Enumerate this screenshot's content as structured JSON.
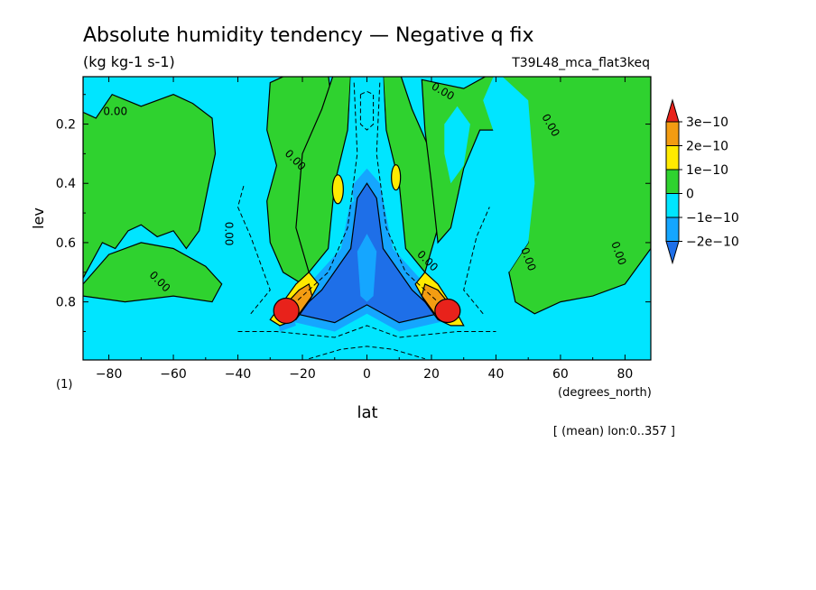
{
  "chart_data": {
    "type": "heatmap",
    "title": "Absolute humidity tendency — Negative q fix",
    "subtitle": "(kg kg-1 s-1)",
    "run_label": "T39L48_mca_flat3keq",
    "xlabel": "lat",
    "xunit": "(degrees_north)",
    "ylabel": "lev",
    "yunit": "(1)",
    "footnote": "[ (mean) lon:0..357 ]",
    "x_ticks": [
      -80,
      -60,
      -40,
      -20,
      0,
      20,
      40,
      60,
      80
    ],
    "x_tick_labels": [
      "−80",
      "−60",
      "−40",
      "−20",
      "0",
      "20",
      "40",
      "60",
      "80"
    ],
    "y_ticks": [
      0.2,
      0.4,
      0.6,
      0.8
    ],
    "y_tick_labels": [
      "0.2",
      "0.4",
      "0.6",
      "0.8"
    ],
    "xlim": [
      -88,
      88
    ],
    "ylim": [
      0.996,
      0.04
    ],
    "grid": false,
    "contour_label": "0.00",
    "colorbar": {
      "labels": [
        "3e−10",
        "2e−10",
        "1e−10",
        "0",
        "−1e−10",
        "−2e−10"
      ],
      "colors": [
        "#e8221b",
        "#f39c12",
        "#ffea00",
        "#2fd22f",
        "#00e5ff",
        "#15a6ff",
        "#1e6fe8"
      ]
    },
    "colors": {
      "background": "#00e5ff",
      "positive_small": "#2fd22f",
      "positive_1": "#ffea00",
      "positive_2": "#f39c12",
      "positive_3": "#e8221b",
      "negative_1": "#15a6ff",
      "negative_2": "#1e6fe8"
    }
  }
}
